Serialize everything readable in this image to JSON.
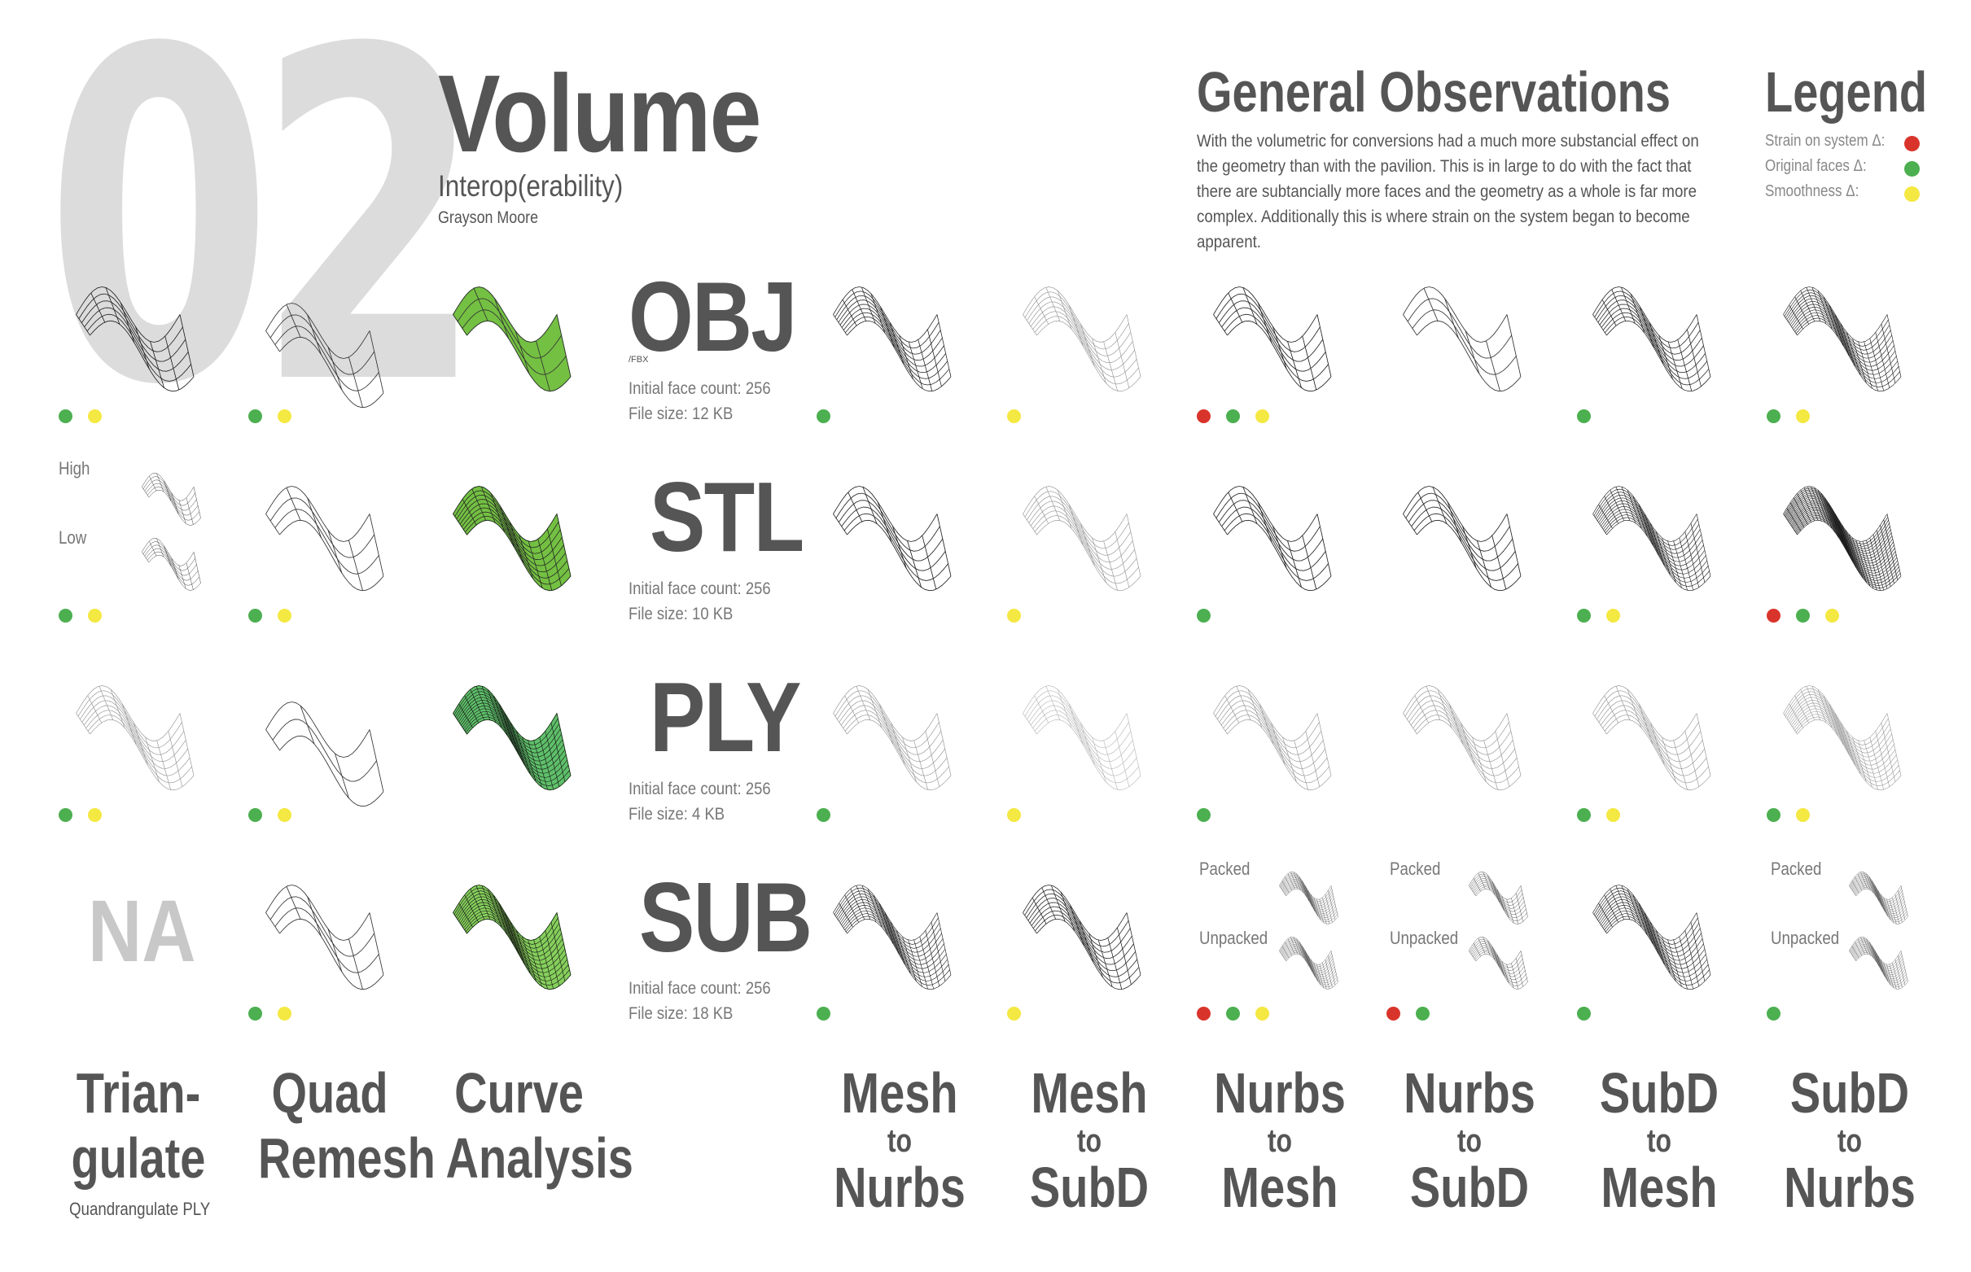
{
  "header": {
    "number": "02",
    "title": "Volume",
    "subtitle": "Interop(erability)",
    "author": "Grayson Moore"
  },
  "observations": {
    "heading": "General Observations",
    "text": "With the volumetric for conversions had a much more substancial effect on the geometry than with the pavilion. This is in large to do with the fact that there are subtancially more faces and the geometry as a whole is far more complex. Additionally this is where strain on the system began to become apparent."
  },
  "legend": {
    "heading": "Legend",
    "items": [
      {
        "label": "Strain on system Δ:",
        "color": "#d9342b"
      },
      {
        "label": "Original faces Δ:",
        "color": "#4caf50"
      },
      {
        "label": "Smoothness Δ:",
        "color": "#f4e842"
      }
    ]
  },
  "formats": [
    {
      "name": "OBJ",
      "note": "/FBX",
      "face_count": "Initial face count: 256",
      "file_size": "File size: 12 KB"
    },
    {
      "name": "STL",
      "note": "",
      "face_count": "Initial face count: 256",
      "file_size": "File size: 10 KB"
    },
    {
      "name": "PLY",
      "note": "",
      "face_count": "Initial face count: 256",
      "file_size": "File size: 4 KB"
    },
    {
      "name": "SUB",
      "note": "",
      "face_count": "Initial face count: 256",
      "file_size": "File size: 18 KB"
    }
  ],
  "labels": {
    "high": "High",
    "low": "Low",
    "packed": "Packed",
    "unpacked": "Unpacked",
    "na": "NA",
    "quadrangulate": "Quandrangulate PLY"
  },
  "columns": {
    "triangulate": [
      "Trian-",
      "gulate"
    ],
    "quad_remesh": [
      "Quad",
      "Remesh"
    ],
    "curve_analysis": [
      "Curve",
      "Analysis"
    ],
    "mesh_to_nurbs": [
      "Mesh",
      "to",
      "Nurbs"
    ],
    "mesh_to_subd": [
      "Mesh",
      "to",
      "SubD"
    ],
    "nurbs_to_mesh": [
      "Nurbs",
      "to",
      "Mesh"
    ],
    "nurbs_to_subd": [
      "Nurbs",
      "to",
      "SubD"
    ],
    "subd_to_mesh": [
      "SubD",
      "to",
      "Mesh"
    ],
    "subd_to_nurbs": [
      "SubD",
      "to",
      "Nurbs"
    ]
  },
  "dot_colors": {
    "red": "#d9342b",
    "green": "#4caf50",
    "yellow": "#f4e842"
  }
}
